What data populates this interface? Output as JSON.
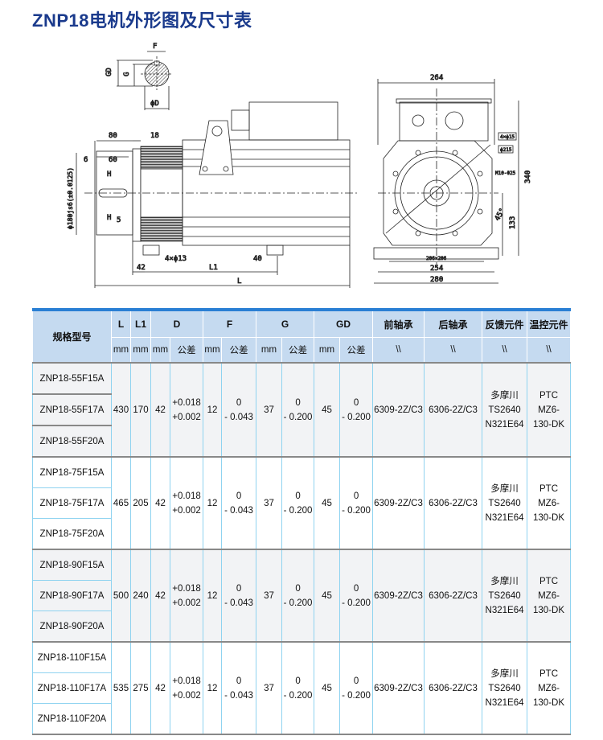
{
  "title": "ZNP18电机外形图及尺寸表",
  "drawing": {
    "section_labels": {
      "F": "F",
      "G": "G",
      "GD": "GD",
      "D": "ϕD"
    },
    "side_view": {
      "d80": "80",
      "d18": "18",
      "d6": "6",
      "d60": "60",
      "H1": "H",
      "H2": "H",
      "d5": "5",
      "pilot": "ϕ180js6(±0.0125)",
      "d42": "42",
      "holes": "4×ϕ13",
      "d40": "40",
      "L1": "L1",
      "L": "L"
    },
    "front_view": {
      "d264": "264",
      "d340": "340",
      "d133": "133",
      "angle": "45°",
      "bolt_holes": "4×ϕ15",
      "pcd": "ϕ215",
      "thread": "M10-Φ25",
      "d206": "206×206",
      "d254": "254",
      "d280": "280"
    }
  },
  "table": {
    "headers": {
      "model": "规格型号",
      "L": "L",
      "L1": "L1",
      "D": "D",
      "F": "F",
      "G": "G",
      "GD": "GD",
      "front_bearing": "前轴承",
      "rear_bearing": "后轴承",
      "feedback": "反馈元件",
      "temp": "温控元件"
    },
    "subheaders": {
      "mm": "mm",
      "tol": "公差",
      "na": "\\\\"
    },
    "groups": [
      {
        "models": [
          "ZNP18-55F15A",
          "ZNP18-55F17A",
          "ZNP18-55F20A"
        ],
        "L": "430",
        "L1": "170",
        "D": "42",
        "D_tol": [
          "+0.018",
          "+0.002"
        ],
        "F": "12",
        "F_tol": [
          "0",
          "- 0.043"
        ],
        "G": "37",
        "G_tol": [
          "0",
          "- 0.200"
        ],
        "GD": "45",
        "GD_tol": [
          "0",
          "- 0.200"
        ],
        "front": "6309-2Z/C3",
        "rear": "6306-2Z/C3",
        "feedback": [
          "多摩川",
          "TS2640",
          "N321E64"
        ],
        "temp": [
          "PTC",
          "MZ6-",
          "130-DK"
        ]
      },
      {
        "models": [
          "ZNP18-75F15A",
          "ZNP18-75F17A",
          "ZNP18-75F20A"
        ],
        "L": "465",
        "L1": "205",
        "D": "42",
        "D_tol": [
          "+0.018",
          "+0.002"
        ],
        "F": "12",
        "F_tol": [
          "0",
          "- 0.043"
        ],
        "G": "37",
        "G_tol": [
          "0",
          "- 0.200"
        ],
        "GD": "45",
        "GD_tol": [
          "0",
          "- 0.200"
        ],
        "front": "6309-2Z/C3",
        "rear": "6306-2Z/C3",
        "feedback": [
          "多摩川",
          "TS2640",
          "N321E64"
        ],
        "temp": [
          "PTC",
          "MZ6-",
          "130-DK"
        ]
      },
      {
        "models": [
          "ZNP18-90F15A",
          "ZNP18-90F17A",
          "ZNP18-90F20A"
        ],
        "L": "500",
        "L1": "240",
        "D": "42",
        "D_tol": [
          "+0.018",
          "+0.002"
        ],
        "F": "12",
        "F_tol": [
          "0",
          "- 0.043"
        ],
        "G": "37",
        "G_tol": [
          "0",
          "- 0.200"
        ],
        "GD": "45",
        "GD_tol": [
          "0",
          "- 0.200"
        ],
        "front": "6309-2Z/C3",
        "rear": "6306-2Z/C3",
        "feedback": [
          "多摩川",
          "TS2640",
          "N321E64"
        ],
        "temp": [
          "PTC",
          "MZ6-",
          "130-DK"
        ]
      },
      {
        "models": [
          "ZNP18-110F15A",
          "ZNP18-110F17A",
          "ZNP18-110F20A"
        ],
        "L": "535",
        "L1": "275",
        "D": "42",
        "D_tol": [
          "+0.018",
          "+0.002"
        ],
        "F": "12",
        "F_tol": [
          "0",
          "- 0.043"
        ],
        "G": "37",
        "G_tol": [
          "0",
          "- 0.200"
        ],
        "GD": "45",
        "GD_tol": [
          "0",
          "- 0.200"
        ],
        "front": "6309-2Z/C3",
        "rear": "6306-2Z/C3",
        "feedback": [
          "多摩川",
          "TS2640",
          "N321E64"
        ],
        "temp": [
          "PTC",
          "MZ6-",
          "130-DK"
        ]
      }
    ]
  }
}
